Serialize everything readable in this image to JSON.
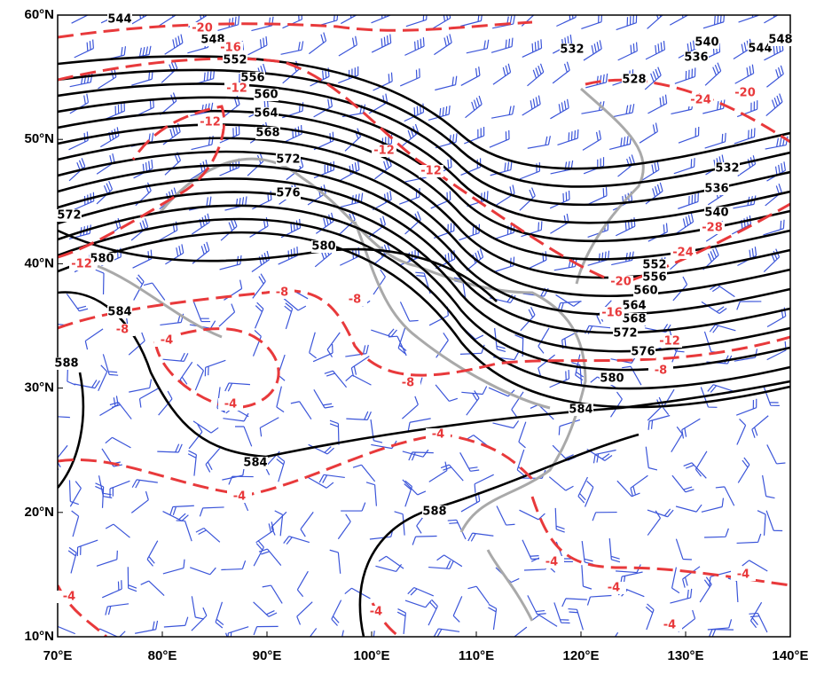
{
  "axes": {
    "x_ticks": [
      {
        "value": 70,
        "label": "70°E"
      },
      {
        "value": 80,
        "label": "80°E"
      },
      {
        "value": 90,
        "label": "90°E"
      },
      {
        "value": 100,
        "label": "100°E"
      },
      {
        "value": 110,
        "label": "110°E"
      },
      {
        "value": 120,
        "label": "120°E"
      },
      {
        "value": 130,
        "label": "130°E"
      },
      {
        "value": 140,
        "label": "140°E"
      }
    ],
    "y_ticks": [
      {
        "value": 10,
        "label": "10°N"
      },
      {
        "value": 20,
        "label": "20°N"
      },
      {
        "value": 30,
        "label": "30°N"
      },
      {
        "value": 40,
        "label": "40°N"
      },
      {
        "value": 50,
        "label": "50°N"
      },
      {
        "value": 60,
        "label": "60°N"
      }
    ]
  },
  "contours": {
    "height_labels": [
      544,
      548,
      552,
      556,
      560,
      564,
      568,
      572,
      576,
      572,
      580,
      580,
      584,
      588,
      584,
      588,
      584,
      580,
      576,
      572,
      568,
      564,
      560,
      556,
      552,
      536,
      532,
      540,
      528,
      532,
      540,
      536,
      544,
      548
    ],
    "temperature_labels": [
      -20,
      -16,
      -12,
      -12,
      -12,
      -12,
      -12,
      -8,
      -8,
      -8,
      -4,
      -4,
      -8,
      -4,
      -4,
      -16,
      -20,
      -24,
      -28,
      -24,
      -20,
      -12,
      -8,
      -4,
      -4,
      -4,
      -4,
      -4,
      -4
    ]
  }
}
